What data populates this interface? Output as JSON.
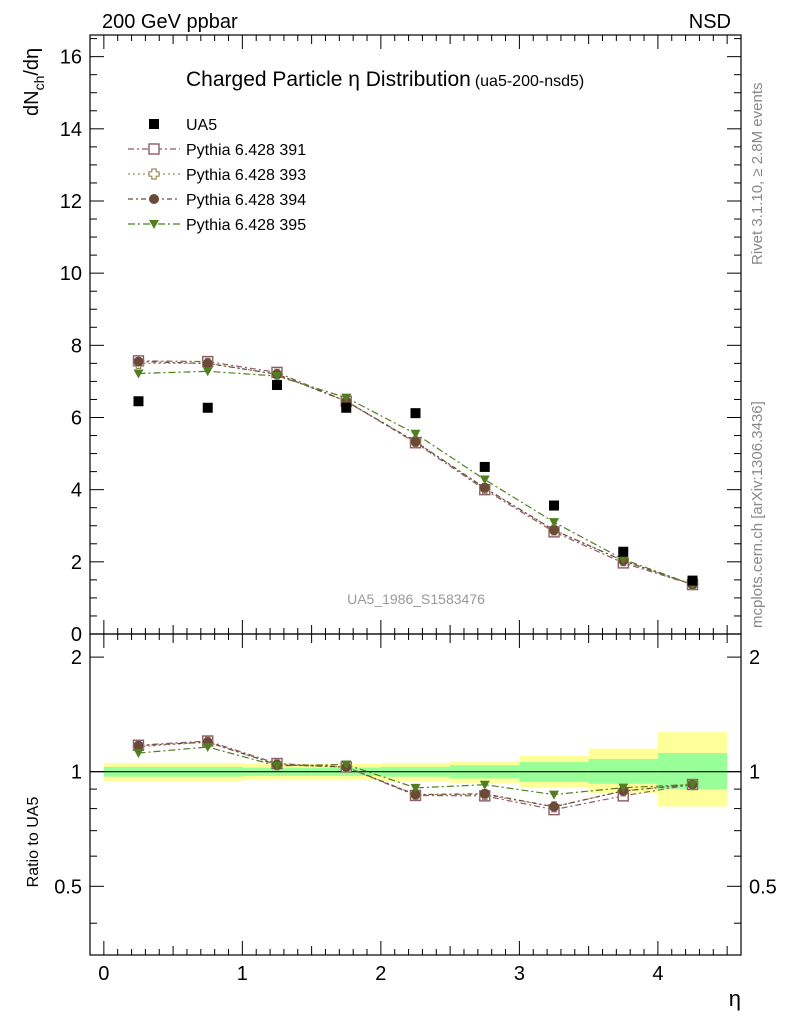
{
  "header": {
    "left": "200 GeV ppbar",
    "right": "NSD"
  },
  "side_text": {
    "rivet": "Rivet 3.1.10, ≥ 2.8M events",
    "mcplots": "mcplots.cern.ch [arXiv:1306.3436]"
  },
  "watermark": "UA5_1986_S1583476",
  "title": {
    "main": "Charged Particle η Distribution",
    "sub": "(ua5-200-nsd5)"
  },
  "colors": {
    "data": "#000000",
    "p391": "#8b5c6b",
    "p393": "#9b8a5a",
    "p394": "#6b4a3a",
    "p395": "#4f7f1f",
    "band_yellow": "#ffff99",
    "band_green": "#99ff99"
  },
  "chart_data": {
    "type": "scatter",
    "title": "Charged Particle η Distribution",
    "xlabel": "η",
    "ylabel": "dN_ch/dη",
    "ratio_ylabel": "Ratio to UA5",
    "xlim": [
      -0.1,
      4.6
    ],
    "ylim": [
      0,
      16.6
    ],
    "ratio_ylim": [
      0.33,
      2.3
    ],
    "ratio_scale": "log",
    "legend_position": "top-left",
    "x_ticks": [
      "0",
      "1",
      "2",
      "3",
      "4"
    ],
    "y_ticks": [
      "0",
      "2",
      "4",
      "6",
      "8",
      "10",
      "12",
      "14",
      "16"
    ],
    "ratio_ticks": [
      "0.5",
      "1",
      "2"
    ],
    "x": [
      0.25,
      0.75,
      1.25,
      1.75,
      2.25,
      2.75,
      3.25,
      3.75,
      4.25
    ],
    "data_series": {
      "name": "UA5",
      "values": [
        6.45,
        6.27,
        6.9,
        6.27,
        6.12,
        4.63,
        3.56,
        2.28,
        1.48
      ]
    },
    "series": [
      {
        "name": "Pythia 6.428 391",
        "key": "p391",
        "marker": "open-square",
        "values": [
          7.57,
          7.55,
          7.25,
          6.45,
          5.3,
          4.0,
          2.83,
          1.97,
          1.37
        ]
      },
      {
        "name": "Pythia 6.428 393",
        "key": "p393",
        "marker": "open-cross",
        "values": [
          7.5,
          7.5,
          7.2,
          6.45,
          5.33,
          4.03,
          2.88,
          2.03,
          1.37
        ]
      },
      {
        "name": "Pythia 6.428 394",
        "key": "p394",
        "marker": "filled-circle",
        "values": [
          7.55,
          7.5,
          7.2,
          6.45,
          5.33,
          4.05,
          2.88,
          2.03,
          1.37
        ]
      },
      {
        "name": "Pythia 6.428 395",
        "key": "p395",
        "marker": "filled-triangle-down",
        "values": [
          7.22,
          7.28,
          7.15,
          6.55,
          5.55,
          4.28,
          3.1,
          2.07,
          1.37
        ]
      }
    ],
    "ratio_bands": {
      "x_edges": [
        0,
        0.5,
        1,
        1.5,
        2,
        2.5,
        3,
        3.5,
        4,
        4.5
      ],
      "green": [
        [
          0.97,
          1.03
        ],
        [
          0.97,
          1.03
        ],
        [
          0.975,
          1.025
        ],
        [
          0.975,
          1.025
        ],
        [
          0.97,
          1.03
        ],
        [
          0.96,
          1.04
        ],
        [
          0.94,
          1.06
        ],
        [
          0.93,
          1.08
        ],
        [
          0.9,
          1.12
        ]
      ],
      "yellow": [
        [
          0.945,
          1.055
        ],
        [
          0.945,
          1.055
        ],
        [
          0.95,
          1.05
        ],
        [
          0.95,
          1.05
        ],
        [
          0.945,
          1.055
        ],
        [
          0.935,
          1.065
        ],
        [
          0.91,
          1.1
        ],
        [
          0.88,
          1.15
        ],
        [
          0.81,
          1.27
        ]
      ]
    }
  }
}
